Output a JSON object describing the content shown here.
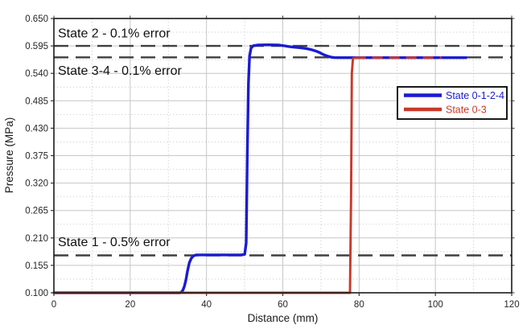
{
  "chart_data": {
    "type": "line",
    "title": "",
    "xlabel": "Distance (mm)",
    "ylabel": "Pressure (MPa)",
    "xlim": [
      0,
      120
    ],
    "ylim": [
      0.1,
      0.65
    ],
    "xticks": [
      "0",
      "20",
      "40",
      "60",
      "80",
      "100",
      "120"
    ],
    "xtick_values": [
      0,
      20,
      40,
      60,
      80,
      100,
      120
    ],
    "yticks": [
      "0.100",
      "0.155",
      "0.210",
      "0.265",
      "0.320",
      "0.375",
      "0.430",
      "0.485",
      "0.540",
      "0.595",
      "0.650"
    ],
    "ytick_values": [
      0.1,
      0.155,
      0.21,
      0.265,
      0.32,
      0.375,
      0.43,
      0.485,
      0.54,
      0.595,
      0.65
    ],
    "grid": {
      "major_style": "solid",
      "minor_style": "dotted",
      "major_color": "#c6c6c6",
      "minor_color": "#cfcfcf"
    },
    "reference_lines": [
      {
        "label": "State 2 - 0.1% error",
        "value": 0.595,
        "style": "dashed",
        "color": "#3f3f3f",
        "label_position": "above"
      },
      {
        "label": "State 3-4 - 0.1% error",
        "value": 0.572,
        "style": "dashed",
        "color": "#3f3f3f",
        "label_position": "below"
      },
      {
        "label": "State 1 - 0.5% error",
        "value": 0.175,
        "style": "dashed",
        "color": "#3f3f3f",
        "label_position": "above"
      }
    ],
    "legend": {
      "position": "right-center",
      "entries": [
        {
          "label": "State 0-1-2-4",
          "color": "#1b1bd1"
        },
        {
          "label": "State 0-3",
          "color": "#c8392b"
        }
      ]
    },
    "series": [
      {
        "name": "State 0-1-2-4",
        "color": "#1b1bd1",
        "x": [
          0,
          33.2,
          33.8,
          34.2,
          34.6,
          35.0,
          35.5,
          36.0,
          36.6,
          37.3,
          49.0,
          50.0,
          50.4,
          50.7,
          51.0,
          51.3,
          51.7,
          52.3,
          53.5,
          56.0,
          59.0,
          60.5,
          61.3,
          62.3,
          63.3,
          64.5,
          65.5,
          66.5,
          67.5,
          68.5,
          69.5,
          70.3,
          71.2,
          72.0,
          72.8,
          73.6,
          75.0,
          108.0
        ],
        "y": [
          0.1,
          0.1,
          0.105,
          0.113,
          0.126,
          0.143,
          0.16,
          0.169,
          0.174,
          0.176,
          0.176,
          0.177,
          0.2,
          0.38,
          0.52,
          0.575,
          0.591,
          0.5955,
          0.597,
          0.5972,
          0.5968,
          0.5952,
          0.594,
          0.593,
          0.5922,
          0.5915,
          0.5905,
          0.5892,
          0.5875,
          0.5852,
          0.5822,
          0.579,
          0.576,
          0.5738,
          0.5722,
          0.5716,
          0.5714,
          0.5714
        ]
      },
      {
        "name": "State 0-3",
        "color": "#c8392b",
        "x": [
          0,
          77.6,
          77.9,
          78.1,
          78.4,
          79.0,
          101.6
        ],
        "y": [
          0.1,
          0.1,
          0.3,
          0.54,
          0.57,
          0.5714,
          0.5714
        ],
        "overlap_dash_from_x": 79,
        "overlap_dasharray": "13 8"
      }
    ]
  }
}
